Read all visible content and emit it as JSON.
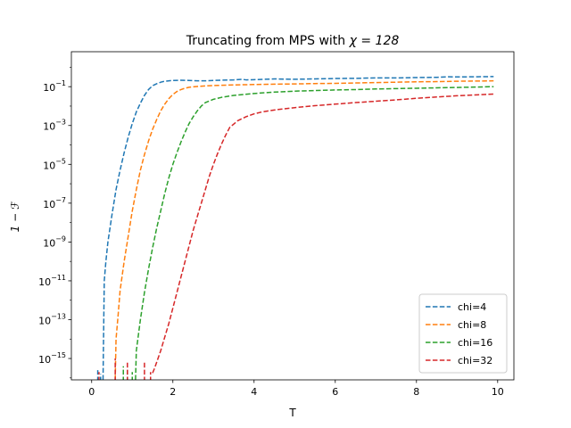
{
  "chart_data": {
    "type": "line",
    "title_prefix": "Truncating from MPS with ",
    "title_math": "χ = 128",
    "xlabel": "T",
    "ylabel": "1 − ℱ",
    "xlim": [
      -0.5,
      10.4
    ],
    "ylim_log10": [
      -16.1,
      0.8
    ],
    "yscale": "log",
    "x_ticks": [
      0,
      2,
      4,
      6,
      8,
      10
    ],
    "x_tick_labels": [
      "0",
      "2",
      "4",
      "6",
      "8",
      "10"
    ],
    "y_ticks_log10": [
      -15,
      -13,
      -11,
      -9,
      -7,
      -5,
      -3,
      -1
    ],
    "y_tick_labels": [
      {
        "base": "10",
        "exp": "−15"
      },
      {
        "base": "10",
        "exp": "−13"
      },
      {
        "base": "10",
        "exp": "−11"
      },
      {
        "base": "10",
        "exp": "−9"
      },
      {
        "base": "10",
        "exp": "−7"
      },
      {
        "base": "10",
        "exp": "−5"
      },
      {
        "base": "10",
        "exp": "−3"
      },
      {
        "base": "10",
        "exp": "−1"
      }
    ],
    "grid": false,
    "legend_position": "lower-right",
    "line_style": "dashed",
    "series": [
      {
        "name": "chi=4",
        "color": "#1f77b4",
        "spikes": [
          [
            0.15,
            -15.6
          ],
          [
            0.22,
            -15.8
          ]
        ],
        "x": [
          0.28,
          0.31,
          0.35,
          0.4,
          0.5,
          0.6,
          0.7,
          0.8,
          0.9,
          1.0,
          1.1,
          1.2,
          1.3,
          1.4,
          1.5,
          1.6,
          1.7,
          1.8,
          2.0,
          2.2,
          2.4,
          2.6,
          2.8,
          3.0,
          3.5,
          3.7,
          3.8,
          4.0,
          4.5,
          5.0,
          5.5,
          6.0,
          6.5,
          7.0,
          7.5,
          8.0,
          8.5,
          8.8,
          9.0,
          9.5,
          9.9
        ],
        "log10_y": [
          -16.1,
          -11.0,
          -10.0,
          -9.0,
          -7.6,
          -6.3,
          -5.3,
          -4.4,
          -3.6,
          -2.9,
          -2.3,
          -1.85,
          -1.45,
          -1.15,
          -0.95,
          -0.85,
          -0.77,
          -0.72,
          -0.68,
          -0.67,
          -0.68,
          -0.7,
          -0.7,
          -0.68,
          -0.65,
          -0.62,
          -0.65,
          -0.64,
          -0.6,
          -0.62,
          -0.6,
          -0.58,
          -0.57,
          -0.55,
          -0.55,
          -0.53,
          -0.52,
          -0.49,
          -0.5,
          -0.49,
          -0.48
        ]
      },
      {
        "name": "chi=8",
        "color": "#ff7f0e",
        "spikes": [],
        "x": [
          0.58,
          0.6,
          0.65,
          0.7,
          0.8,
          0.9,
          1.0,
          1.1,
          1.2,
          1.3,
          1.4,
          1.5,
          1.6,
          1.7,
          1.8,
          1.9,
          2.0,
          2.1,
          2.2,
          2.3,
          2.4,
          2.6,
          2.8,
          3.0,
          3.5,
          4.0,
          4.5,
          5.0,
          5.5,
          6.0,
          6.5,
          7.0,
          7.5,
          8.0,
          8.5,
          9.0,
          9.5,
          9.9
        ],
        "log10_y": [
          -16.1,
          -14.0,
          -12.8,
          -11.5,
          -10.0,
          -8.7,
          -7.4,
          -6.3,
          -5.3,
          -4.5,
          -3.8,
          -3.2,
          -2.7,
          -2.25,
          -1.9,
          -1.62,
          -1.4,
          -1.25,
          -1.15,
          -1.08,
          -1.03,
          -0.99,
          -0.96,
          -0.94,
          -0.91,
          -0.89,
          -0.87,
          -0.86,
          -0.84,
          -0.83,
          -0.81,
          -0.79,
          -0.77,
          -0.75,
          -0.74,
          -0.72,
          -0.71,
          -0.7
        ]
      },
      {
        "name": "chi=16",
        "color": "#2ca02c",
        "spikes": [
          [
            0.78,
            -15.4
          ],
          [
            0.88,
            -15.6
          ],
          [
            1.0,
            -15.7
          ]
        ],
        "x": [
          1.08,
          1.1,
          1.15,
          1.2,
          1.3,
          1.4,
          1.5,
          1.6,
          1.7,
          1.8,
          1.9,
          2.0,
          2.1,
          2.2,
          2.3,
          2.4,
          2.5,
          2.6,
          2.7,
          2.8,
          3.0,
          3.2,
          3.5,
          4.0,
          4.5,
          5.0,
          5.5,
          6.0,
          6.5,
          7.0,
          7.5,
          8.0,
          8.5,
          9.0,
          9.5,
          9.9
        ],
        "log10_y": [
          -16.1,
          -14.6,
          -13.8,
          -13.0,
          -11.6,
          -10.4,
          -9.3,
          -8.3,
          -7.4,
          -6.5,
          -5.7,
          -5.0,
          -4.4,
          -3.85,
          -3.35,
          -2.9,
          -2.55,
          -2.25,
          -2.0,
          -1.82,
          -1.65,
          -1.55,
          -1.45,
          -1.35,
          -1.28,
          -1.23,
          -1.2,
          -1.17,
          -1.15,
          -1.12,
          -1.1,
          -1.08,
          -1.06,
          -1.04,
          -1.02,
          -1.0
        ]
      },
      {
        "name": "chi=32",
        "color": "#d62728",
        "spikes": [
          [
            0.18,
            -15.7
          ],
          [
            0.58,
            -15.0
          ],
          [
            0.88,
            -15.1
          ],
          [
            1.3,
            -15.2
          ],
          [
            1.45,
            -15.7
          ]
        ],
        "x": [
          1.5,
          1.55,
          1.6,
          1.7,
          1.8,
          1.9,
          2.0,
          2.1,
          2.2,
          2.3,
          2.4,
          2.5,
          2.6,
          2.7,
          2.8,
          2.9,
          3.0,
          3.1,
          3.2,
          3.3,
          3.4,
          3.6,
          3.8,
          4.0,
          4.2,
          4.5,
          5.0,
          5.5,
          6.0,
          6.5,
          7.0,
          7.5,
          8.0,
          8.5,
          9.0,
          9.5,
          9.9
        ],
        "log10_y": [
          -15.75,
          -15.5,
          -15.2,
          -14.6,
          -13.9,
          -13.2,
          -12.4,
          -11.6,
          -10.8,
          -10.0,
          -9.2,
          -8.4,
          -7.7,
          -7.0,
          -6.3,
          -5.6,
          -5.0,
          -4.45,
          -3.95,
          -3.5,
          -3.1,
          -2.75,
          -2.55,
          -2.4,
          -2.3,
          -2.2,
          -2.08,
          -1.98,
          -1.9,
          -1.82,
          -1.75,
          -1.68,
          -1.6,
          -1.53,
          -1.47,
          -1.42,
          -1.38
        ]
      }
    ]
  }
}
